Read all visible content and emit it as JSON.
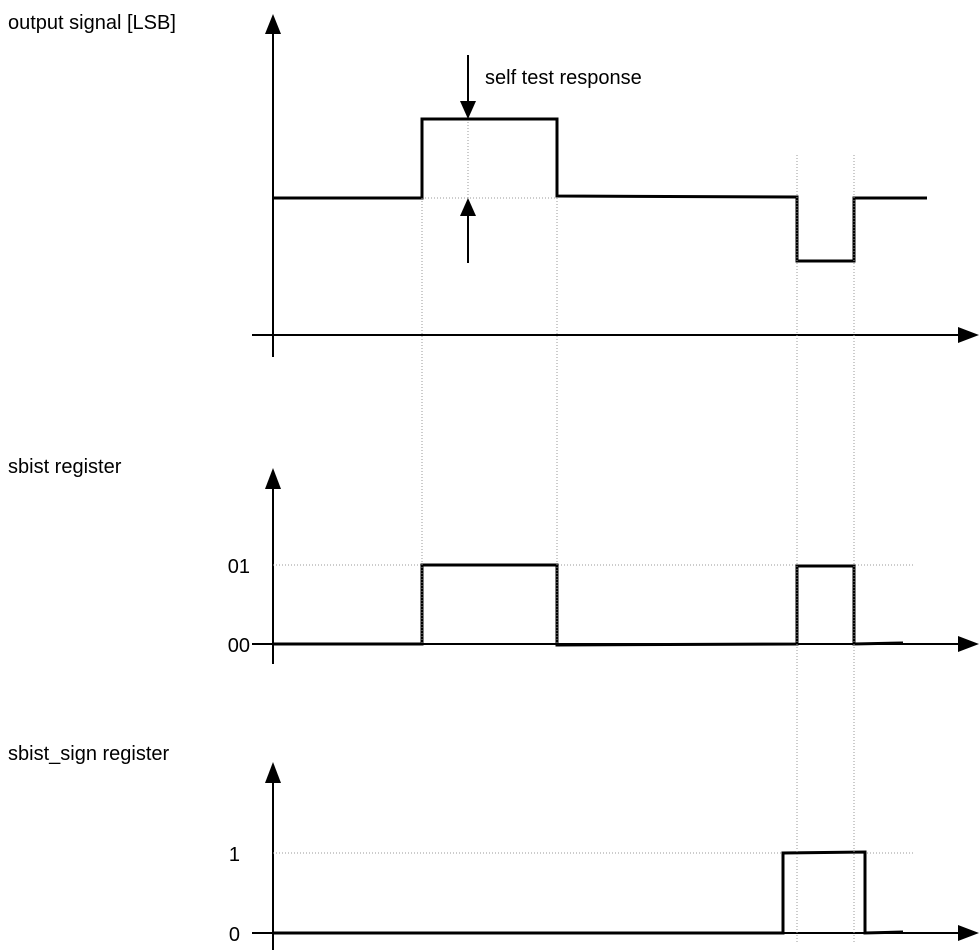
{
  "labels": {
    "output_axis": "output signal [LSB]",
    "self_test": "self test response",
    "sbist_axis": "sbist register",
    "sign_axis": "sbist_sign register"
  },
  "ticks": {
    "sbist_high": "01",
    "sbist_low": "00",
    "sign_high": "1",
    "sign_low": "0"
  },
  "colors": {
    "line": "#000000",
    "guide": "#9a9a9a"
  }
}
